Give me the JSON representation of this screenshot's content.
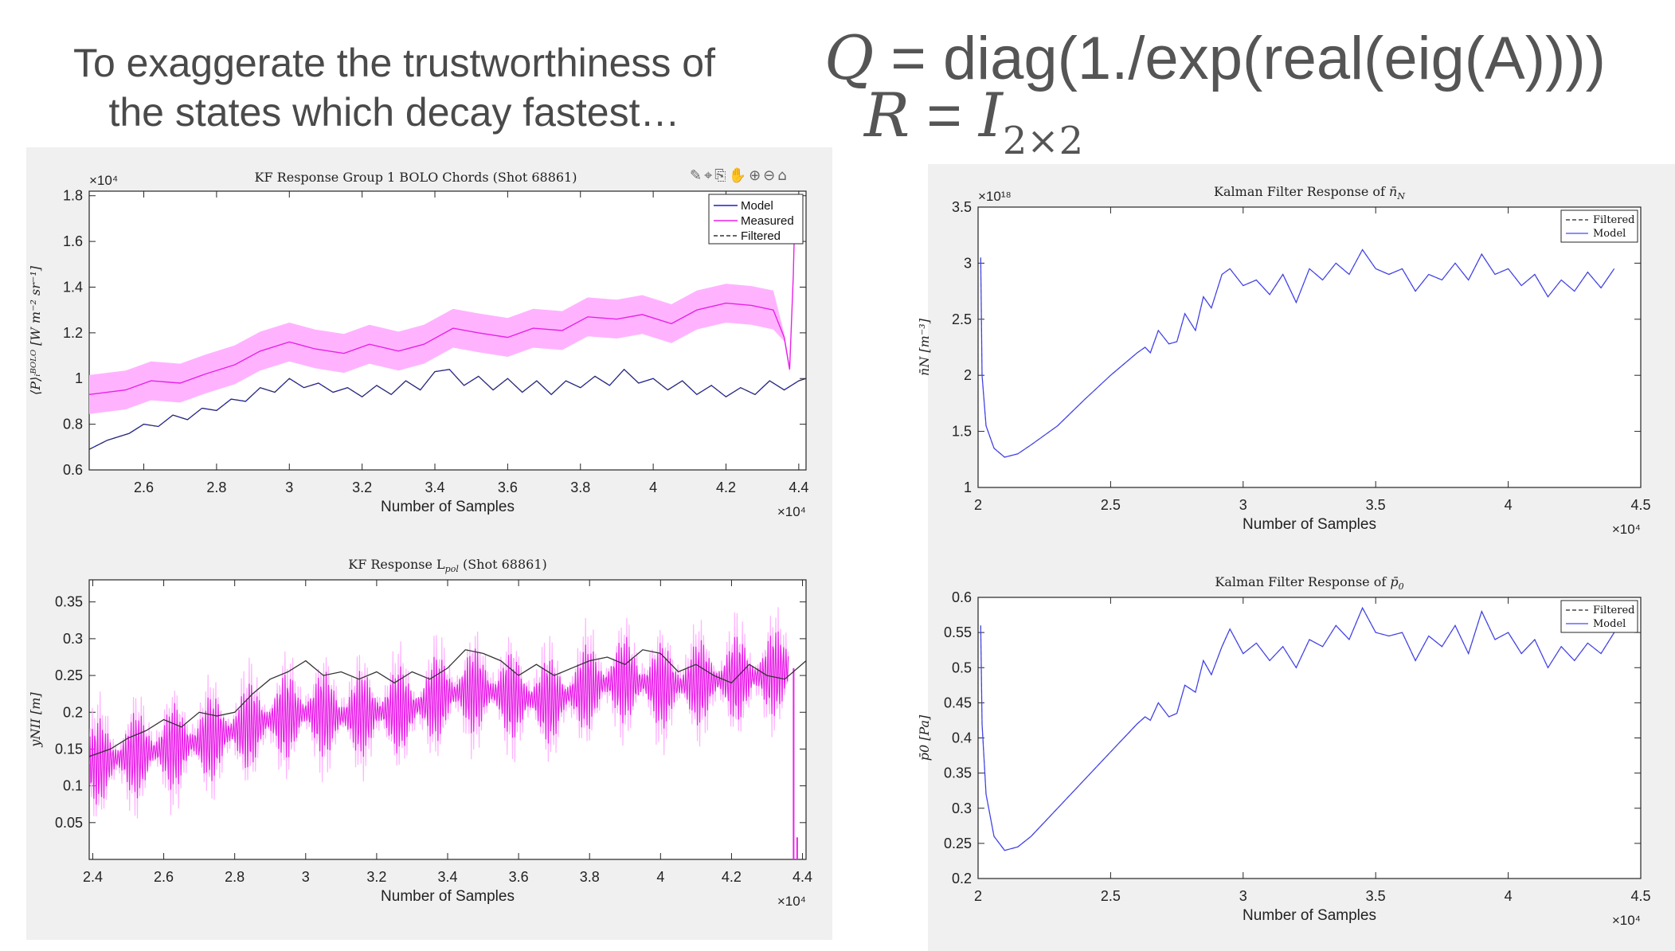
{
  "headline": {
    "line1": "To exaggerate the trustworthiness of",
    "line2": "the states which decay fastest…"
  },
  "equation_q": {
    "lhs": "Q",
    "eq": " = ",
    "rhs": "diag(1./exp(real(eig(A))))"
  },
  "equation_r": {
    "lhs": "R",
    "eq": " = ",
    "rhs": "I",
    "sub": "2×2"
  },
  "toolbar_icons": [
    "brush-icon",
    "data-tip-icon",
    "export-icon",
    "pan-icon",
    "zoom-in-icon",
    "zoom-out-icon",
    "home-icon"
  ],
  "colors": {
    "model": "#1f1fc8",
    "measured": "#e822e8",
    "band": "#ffb3ff",
    "filtered": "#333333",
    "nav_model": "#4848ff"
  },
  "chart_data": [
    {
      "id": "bolo",
      "type": "line",
      "title": "KF Response Group 1 BOLO Chords (Shot 68861)",
      "xlabel": "Number of Samples",
      "ylabel": "⟨P⟩ᵢᴮᴼᴸᴼ [W m⁻² sr⁻¹]",
      "x_exponent": "×10⁴",
      "y_exponent": "×10⁴",
      "xlim": [
        2.45,
        4.42
      ],
      "ylim": [
        0.6,
        1.82
      ],
      "xticks": [
        "2.6",
        "2.8",
        "3",
        "3.2",
        "3.4",
        "3.6",
        "3.8",
        "4",
        "4.2",
        "4.4"
      ],
      "xtick_values": [
        2.6,
        2.8,
        3.0,
        3.2,
        3.4,
        3.6,
        3.8,
        4.0,
        4.2,
        4.4
      ],
      "yticks": [
        "0.6",
        "0.8",
        "1",
        "1.2",
        "1.4",
        "1.6",
        "1.8"
      ],
      "ytick_values": [
        0.6,
        0.8,
        1.0,
        1.2,
        1.4,
        1.6,
        1.8
      ],
      "legend": {
        "position": "top-right",
        "entries": [
          "Model",
          "Measured",
          "Filtered"
        ]
      },
      "grid": false,
      "series": [
        {
          "name": "Measured",
          "x": [
            2.45,
            2.55,
            2.62,
            2.7,
            2.77,
            2.85,
            2.92,
            3.0,
            3.07,
            3.15,
            3.22,
            3.3,
            3.37,
            3.45,
            3.52,
            3.6,
            3.67,
            3.75,
            3.82,
            3.9,
            3.97,
            4.05,
            4.12,
            4.2,
            4.27,
            4.33,
            4.36,
            4.375,
            4.385,
            4.39
          ],
          "y": [
            0.93,
            0.95,
            0.99,
            0.98,
            1.02,
            1.06,
            1.12,
            1.16,
            1.13,
            1.11,
            1.15,
            1.12,
            1.15,
            1.22,
            1.2,
            1.18,
            1.22,
            1.21,
            1.27,
            1.26,
            1.28,
            1.24,
            1.3,
            1.33,
            1.32,
            1.3,
            1.18,
            1.04,
            1.45,
            1.78
          ],
          "band_width": 0.17
        },
        {
          "name": "Model",
          "x": [
            2.45,
            2.5,
            2.56,
            2.6,
            2.64,
            2.68,
            2.72,
            2.76,
            2.8,
            2.84,
            2.88,
            2.92,
            2.96,
            3.0,
            3.04,
            3.08,
            3.12,
            3.16,
            3.2,
            3.24,
            3.28,
            3.32,
            3.36,
            3.4,
            3.44,
            3.48,
            3.52,
            3.56,
            3.6,
            3.64,
            3.68,
            3.72,
            3.76,
            3.8,
            3.84,
            3.88,
            3.92,
            3.96,
            4.0,
            4.04,
            4.08,
            4.12,
            4.16,
            4.2,
            4.24,
            4.28,
            4.32,
            4.36,
            4.4,
            4.42
          ],
          "y": [
            0.69,
            0.73,
            0.76,
            0.8,
            0.79,
            0.84,
            0.82,
            0.87,
            0.86,
            0.91,
            0.9,
            0.96,
            0.94,
            1.0,
            0.96,
            0.98,
            0.94,
            0.96,
            0.92,
            0.97,
            0.93,
            0.99,
            0.95,
            1.03,
            1.04,
            0.97,
            1.01,
            0.95,
            1.0,
            0.94,
            0.99,
            0.93,
            0.99,
            0.96,
            1.01,
            0.97,
            1.04,
            0.98,
            1.0,
            0.95,
            0.99,
            0.93,
            0.97,
            0.92,
            0.96,
            0.93,
            0.99,
            0.95,
            0.99,
            1.0
          ]
        },
        {
          "name": "Filtered",
          "same_as": "Model",
          "dash": true
        }
      ]
    },
    {
      "id": "lpol",
      "type": "line",
      "title": "KF Response Lpol (Shot 68861)",
      "title_main": "KF Response L",
      "title_sub": "pol",
      "title_tail": " (Shot 68861)",
      "xlabel": "Number of Samples",
      "ylabel": "yNII [m]",
      "x_exponent": "×10⁴",
      "xlim": [
        2.39,
        4.41
      ],
      "ylim": [
        0.0,
        0.38
      ],
      "xticks": [
        "2.4",
        "2.6",
        "2.8",
        "3",
        "3.2",
        "3.4",
        "3.6",
        "3.8",
        "4",
        "4.2",
        "4.4"
      ],
      "xtick_values": [
        2.4,
        2.6,
        2.8,
        3.0,
        3.2,
        3.4,
        3.6,
        3.8,
        4.0,
        4.2,
        4.4
      ],
      "yticks": [
        "0.05",
        "0.1",
        "0.15",
        "0.2",
        "0.25",
        "0.3",
        "0.35"
      ],
      "ytick_values": [
        0.05,
        0.1,
        0.15,
        0.2,
        0.25,
        0.3,
        0.35
      ],
      "grid": false,
      "series": [
        {
          "name": "Filtered",
          "x": [
            2.39,
            2.45,
            2.5,
            2.55,
            2.6,
            2.65,
            2.7,
            2.75,
            2.8,
            2.85,
            2.9,
            2.95,
            3.0,
            3.05,
            3.1,
            3.15,
            3.2,
            3.25,
            3.3,
            3.35,
            3.4,
            3.45,
            3.5,
            3.55,
            3.6,
            3.65,
            3.7,
            3.75,
            3.8,
            3.85,
            3.9,
            3.95,
            4.0,
            4.05,
            4.1,
            4.15,
            4.2,
            4.25,
            4.3,
            4.35,
            4.41
          ],
          "y": [
            0.14,
            0.15,
            0.165,
            0.175,
            0.19,
            0.18,
            0.2,
            0.195,
            0.2,
            0.225,
            0.245,
            0.255,
            0.27,
            0.25,
            0.255,
            0.245,
            0.255,
            0.24,
            0.255,
            0.245,
            0.26,
            0.285,
            0.28,
            0.27,
            0.25,
            0.265,
            0.25,
            0.26,
            0.27,
            0.275,
            0.265,
            0.285,
            0.28,
            0.255,
            0.265,
            0.25,
            0.24,
            0.265,
            0.25,
            0.245,
            0.27
          ]
        },
        {
          "name": "Measured",
          "x": [
            2.39,
            2.5,
            2.6,
            2.7,
            2.8,
            2.9,
            3.0,
            3.1,
            3.2,
            3.3,
            3.4,
            3.5,
            3.6,
            3.7,
            3.8,
            3.9,
            4.0,
            4.1,
            4.2,
            4.3,
            4.36
          ],
          "y": [
            0.13,
            0.14,
            0.15,
            0.16,
            0.175,
            0.19,
            0.2,
            0.195,
            0.2,
            0.205,
            0.225,
            0.23,
            0.22,
            0.215,
            0.235,
            0.245,
            0.235,
            0.24,
            0.245,
            0.25,
            0.26
          ],
          "oscillation_amplitude": 0.06
        }
      ]
    },
    {
      "id": "nav",
      "type": "line",
      "title": "Kalman Filter Response of n̄N",
      "title_main": "Kalman Filter Response of ",
      "title_sym": "n̄",
      "title_sub": "N",
      "xlabel": "Number of Samples",
      "ylabel": "n̄N [m⁻³]",
      "x_exponent": "×10⁴",
      "y_exponent": "×10¹⁸",
      "xlim": [
        2.0,
        4.5
      ],
      "ylim": [
        1.0,
        3.5
      ],
      "xticks": [
        "2",
        "2.5",
        "3",
        "3.5",
        "4",
        "4.5"
      ],
      "xtick_values": [
        2.0,
        2.5,
        3.0,
        3.5,
        4.0,
        4.5
      ],
      "yticks": [
        "1",
        "1.5",
        "2",
        "2.5",
        "3",
        "3.5"
      ],
      "ytick_values": [
        1.0,
        1.5,
        2.0,
        2.5,
        3.0,
        3.5
      ],
      "legend": {
        "position": "top-right",
        "entries": [
          "Filtered",
          "Model"
        ]
      },
      "grid": false,
      "series": [
        {
          "name": "Model",
          "x": [
            2.01,
            2.015,
            2.03,
            2.06,
            2.1,
            2.15,
            2.2,
            2.3,
            2.4,
            2.5,
            2.6,
            2.63,
            2.65,
            2.68,
            2.72,
            2.75,
            2.78,
            2.82,
            2.85,
            2.88,
            2.92,
            2.95,
            3.0,
            3.05,
            3.1,
            3.15,
            3.2,
            3.25,
            3.3,
            3.35,
            3.4,
            3.45,
            3.5,
            3.55,
            3.6,
            3.65,
            3.7,
            3.75,
            3.8,
            3.85,
            3.9,
            3.95,
            4.0,
            4.05,
            4.1,
            4.15,
            4.2,
            4.25,
            4.3,
            4.35,
            4.4
          ],
          "y": [
            3.05,
            2.0,
            1.55,
            1.35,
            1.27,
            1.3,
            1.38,
            1.55,
            1.78,
            2.0,
            2.2,
            2.25,
            2.2,
            2.4,
            2.28,
            2.3,
            2.55,
            2.4,
            2.7,
            2.6,
            2.9,
            2.95,
            2.8,
            2.85,
            2.72,
            2.9,
            2.65,
            2.95,
            2.85,
            3.0,
            2.9,
            3.12,
            2.95,
            2.9,
            2.95,
            2.75,
            2.9,
            2.85,
            3.0,
            2.85,
            3.08,
            2.9,
            2.95,
            2.8,
            2.9,
            2.7,
            2.85,
            2.75,
            2.92,
            2.78,
            2.95
          ]
        },
        {
          "name": "Filtered",
          "same_as": "Model",
          "dash": true
        }
      ]
    },
    {
      "id": "p0",
      "type": "line",
      "title": "Kalman Filter Response of p̄0",
      "title_main": "Kalman Filter Response of ",
      "title_sym": "p̄",
      "title_sub": "0",
      "xlabel": "Number of Samples",
      "ylabel": "p̄0 [Pa]",
      "x_exponent": "×10⁴",
      "xlim": [
        2.0,
        4.5
      ],
      "ylim": [
        0.2,
        0.6
      ],
      "xticks": [
        "2",
        "2.5",
        "3",
        "3.5",
        "4",
        "4.5"
      ],
      "xtick_values": [
        2.0,
        2.5,
        3.0,
        3.5,
        4.0,
        4.5
      ],
      "yticks": [
        "0.2",
        "0.25",
        "0.3",
        "0.35",
        "0.4",
        "0.45",
        "0.5",
        "0.55",
        "0.6"
      ],
      "ytick_values": [
        0.2,
        0.25,
        0.3,
        0.35,
        0.4,
        0.45,
        0.5,
        0.55,
        0.6
      ],
      "legend": {
        "position": "top-right",
        "entries": [
          "Filtered",
          "Model"
        ]
      },
      "grid": false,
      "series": [
        {
          "name": "Model",
          "x": [
            2.01,
            2.015,
            2.03,
            2.06,
            2.1,
            2.15,
            2.2,
            2.3,
            2.4,
            2.5,
            2.6,
            2.63,
            2.65,
            2.68,
            2.72,
            2.75,
            2.78,
            2.82,
            2.85,
            2.88,
            2.92,
            2.95,
            3.0,
            3.05,
            3.1,
            3.15,
            3.2,
            3.25,
            3.3,
            3.35,
            3.4,
            3.45,
            3.5,
            3.55,
            3.6,
            3.65,
            3.7,
            3.75,
            3.8,
            3.85,
            3.9,
            3.95,
            4.0,
            4.05,
            4.1,
            4.15,
            4.2,
            4.25,
            4.3,
            4.35,
            4.4
          ],
          "y": [
            0.56,
            0.42,
            0.32,
            0.26,
            0.24,
            0.245,
            0.26,
            0.3,
            0.34,
            0.38,
            0.42,
            0.43,
            0.425,
            0.45,
            0.43,
            0.435,
            0.475,
            0.465,
            0.51,
            0.49,
            0.53,
            0.555,
            0.52,
            0.535,
            0.51,
            0.53,
            0.5,
            0.54,
            0.53,
            0.56,
            0.54,
            0.585,
            0.55,
            0.545,
            0.55,
            0.51,
            0.545,
            0.53,
            0.56,
            0.52,
            0.58,
            0.54,
            0.55,
            0.52,
            0.54,
            0.5,
            0.53,
            0.51,
            0.535,
            0.52,
            0.55
          ]
        },
        {
          "name": "Filtered",
          "same_as": "Model",
          "dash": true
        }
      ]
    }
  ]
}
